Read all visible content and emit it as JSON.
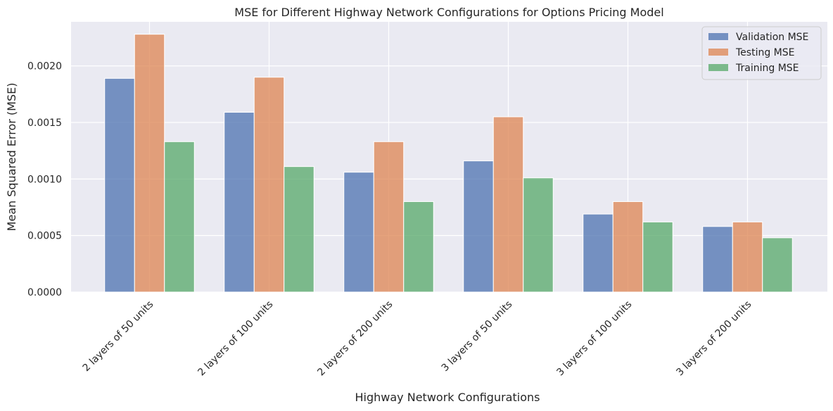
{
  "chart_data": {
    "type": "bar",
    "title": "MSE for Different Highway Network Configurations for Options Pricing Model",
    "xlabel": "Highway Network Configurations",
    "ylabel": "Mean Squared Error (MSE)",
    "categories": [
      "2 layers of 50 units",
      "2 layers of 100 units",
      "2 layers of 200 units",
      "3 layers of 50 units",
      "3 layers of 100 units",
      "3 layers of 200 units"
    ],
    "series": [
      {
        "name": "Validation MSE",
        "color": "#4c72b0",
        "values": [
          0.00189,
          0.00159,
          0.00106,
          0.00116,
          0.00069,
          0.00058
        ]
      },
      {
        "name": "Testing MSE",
        "color": "#dd8452",
        "values": [
          0.00228,
          0.0019,
          0.00133,
          0.00155,
          0.0008,
          0.00062
        ]
      },
      {
        "name": "Training MSE",
        "color": "#55a868",
        "values": [
          0.00133,
          0.00111,
          0.0008,
          0.00101,
          0.00062,
          0.00048
        ]
      }
    ],
    "ylim": [
      0,
      0.00239
    ],
    "yticks": [
      0,
      0.0005,
      0.001,
      0.0015,
      0.002
    ],
    "ytick_labels": [
      "0.0000",
      "0.0005",
      "0.0010",
      "0.0015",
      "0.0020"
    ],
    "grid": true,
    "legend_position": "top-right",
    "plot_background": "#eaeaf2",
    "bar_opacity": 0.75
  }
}
